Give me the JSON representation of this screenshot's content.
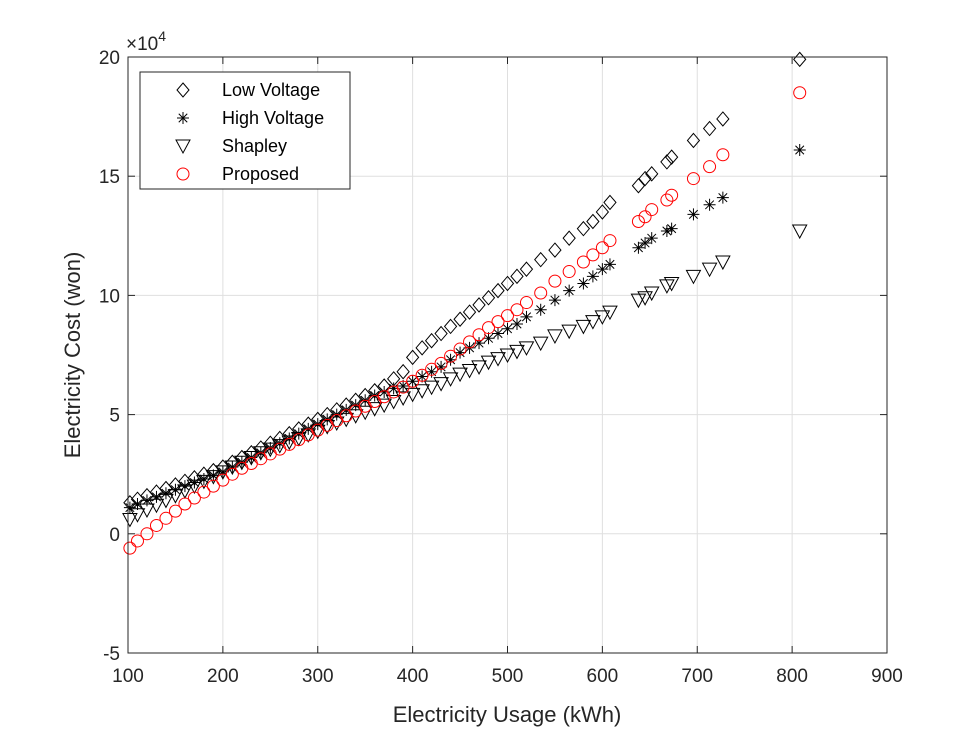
{
  "chart_data": {
    "type": "scatter",
    "title": "",
    "xlabel": "Electricity Usage (kWh)",
    "ylabel": "Electricity Cost (won)",
    "y_multiplier_label": "×10",
    "y_multiplier_exponent": "4",
    "xlim": [
      100,
      900
    ],
    "ylim": [
      -5,
      20
    ],
    "xticks": [
      "100",
      "200",
      "300",
      "400",
      "500",
      "600",
      "700",
      "800",
      "900"
    ],
    "yticks": [
      "-5",
      "0",
      "5",
      "10",
      "15",
      "20"
    ],
    "grid": true,
    "legend_position": "top-left",
    "x": [
      102,
      110,
      120,
      130,
      140,
      150,
      160,
      170,
      180,
      190,
      200,
      210,
      220,
      230,
      240,
      250,
      260,
      270,
      280,
      290,
      300,
      310,
      320,
      330,
      340,
      350,
      360,
      370,
      380,
      390,
      400,
      410,
      420,
      430,
      440,
      450,
      460,
      470,
      480,
      490,
      500,
      510,
      520,
      535,
      550,
      565,
      580,
      590,
      600,
      608,
      638,
      645,
      652,
      668,
      673,
      696,
      713,
      727,
      808
    ],
    "series": [
      {
        "name": "Low Voltage",
        "marker": "diamond",
        "color": "#000000",
        "values": [
          1.3,
          1.45,
          1.6,
          1.75,
          1.9,
          2.05,
          2.2,
          2.35,
          2.5,
          2.65,
          2.8,
          3.0,
          3.2,
          3.4,
          3.6,
          3.8,
          4.0,
          4.2,
          4.4,
          4.6,
          4.8,
          5.0,
          5.2,
          5.4,
          5.6,
          5.8,
          6.0,
          6.2,
          6.5,
          6.8,
          7.4,
          7.8,
          8.1,
          8.4,
          8.7,
          9.0,
          9.3,
          9.6,
          9.9,
          10.2,
          10.5,
          10.8,
          11.1,
          11.5,
          11.9,
          12.4,
          12.8,
          13.1,
          13.5,
          13.9,
          14.6,
          14.9,
          15.1,
          15.6,
          15.8,
          16.5,
          17.0,
          17.4,
          19.9
        ]
      },
      {
        "name": "High Voltage",
        "marker": "asterisk",
        "color": "#000000",
        "values": [
          1.1,
          1.25,
          1.4,
          1.55,
          1.7,
          1.85,
          2.0,
          2.15,
          2.3,
          2.45,
          2.6,
          2.8,
          3.0,
          3.2,
          3.4,
          3.6,
          3.8,
          4.0,
          4.2,
          4.4,
          4.6,
          4.8,
          5.0,
          5.2,
          5.4,
          5.6,
          5.8,
          5.95,
          6.1,
          6.2,
          6.4,
          6.6,
          6.8,
          7.0,
          7.3,
          7.6,
          7.8,
          8.0,
          8.2,
          8.4,
          8.6,
          8.8,
          9.1,
          9.4,
          9.8,
          10.2,
          10.5,
          10.8,
          11.1,
          11.3,
          12.0,
          12.2,
          12.4,
          12.7,
          12.8,
          13.4,
          13.8,
          14.1,
          16.1
        ]
      },
      {
        "name": "Shapley",
        "marker": "triangle-down",
        "color": "#000000",
        "values": [
          0.6,
          0.8,
          1.0,
          1.2,
          1.4,
          1.6,
          1.8,
          2.0,
          2.2,
          2.4,
          2.6,
          2.8,
          3.0,
          3.2,
          3.4,
          3.55,
          3.7,
          3.85,
          4.0,
          4.15,
          4.3,
          4.5,
          4.65,
          4.8,
          4.95,
          5.1,
          5.25,
          5.4,
          5.55,
          5.7,
          5.85,
          6.0,
          6.15,
          6.3,
          6.5,
          6.7,
          6.85,
          7.0,
          7.2,
          7.35,
          7.5,
          7.65,
          7.8,
          8.0,
          8.3,
          8.5,
          8.7,
          8.9,
          9.1,
          9.3,
          9.8,
          9.9,
          10.1,
          10.4,
          10.5,
          10.8,
          11.1,
          11.4,
          12.7
        ]
      },
      {
        "name": "Proposed",
        "marker": "circle",
        "color": "#ff0000",
        "values": [
          -0.6,
          -0.3,
          0.0,
          0.35,
          0.65,
          0.95,
          1.25,
          1.5,
          1.75,
          2.0,
          2.25,
          2.5,
          2.75,
          2.95,
          3.15,
          3.35,
          3.55,
          3.75,
          3.95,
          4.15,
          4.35,
          4.55,
          4.75,
          4.95,
          5.15,
          5.35,
          5.55,
          5.75,
          5.95,
          6.15,
          6.4,
          6.65,
          6.9,
          7.15,
          7.45,
          7.75,
          8.05,
          8.35,
          8.65,
          8.9,
          9.15,
          9.4,
          9.7,
          10.1,
          10.6,
          11.0,
          11.4,
          11.7,
          12.0,
          12.3,
          13.1,
          13.3,
          13.6,
          14.0,
          14.2,
          14.9,
          15.4,
          15.9,
          18.5
        ]
      }
    ]
  }
}
